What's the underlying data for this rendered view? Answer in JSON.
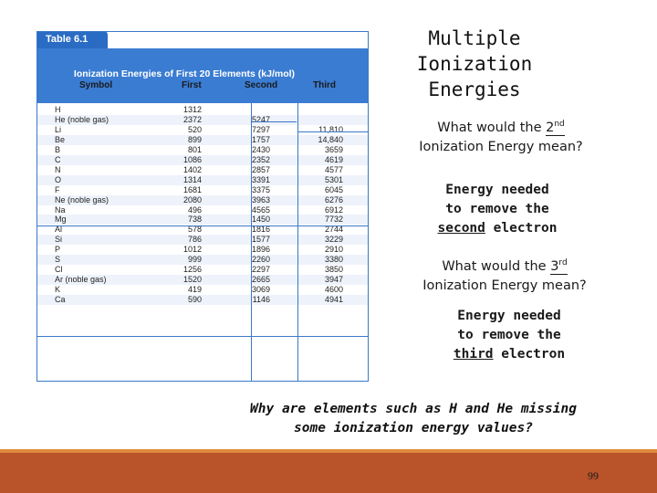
{
  "table": {
    "tab_label": "Table 6.1",
    "caption": "Ionization Energies of First 20 Elements (kJ/mol)",
    "headers": [
      "Symbol",
      "First",
      "Second",
      "Third"
    ],
    "rows": [
      {
        "symbol": "H",
        "first": "1312",
        "second": "",
        "third": ""
      },
      {
        "symbol": "He (noble gas)",
        "first": "2372",
        "second": "5247",
        "third": ""
      },
      {
        "symbol": "Li",
        "first": "520",
        "second": "7297",
        "third": "11,810"
      },
      {
        "symbol": "Be",
        "first": "899",
        "second": "1757",
        "third": "14,840"
      },
      {
        "symbol": "B",
        "first": "801",
        "second": "2430",
        "third": "3659"
      },
      {
        "symbol": "C",
        "first": "1086",
        "second": "2352",
        "third": "4619"
      },
      {
        "symbol": "N",
        "first": "1402",
        "second": "2857",
        "third": "4577"
      },
      {
        "symbol": "O",
        "first": "1314",
        "second": "3391",
        "third": "5301"
      },
      {
        "symbol": "F",
        "first": "1681",
        "second": "3375",
        "third": "6045"
      },
      {
        "symbol": "Ne (noble gas)",
        "first": "2080",
        "second": "3963",
        "third": "6276"
      },
      {
        "symbol": "Na",
        "first": "496",
        "second": "4565",
        "third": "6912"
      },
      {
        "symbol": "Mg",
        "first": "738",
        "second": "1450",
        "third": "7732"
      },
      {
        "symbol": "Al",
        "first": "578",
        "second": "1816",
        "third": "2744"
      },
      {
        "symbol": "Si",
        "first": "786",
        "second": "1577",
        "third": "3229"
      },
      {
        "symbol": "P",
        "first": "1012",
        "second": "1896",
        "third": "2910"
      },
      {
        "symbol": "S",
        "first": "999",
        "second": "2260",
        "third": "3380"
      },
      {
        "symbol": "Cl",
        "first": "1256",
        "second": "2297",
        "third": "3850"
      },
      {
        "symbol": "Ar (noble gas)",
        "first": "1520",
        "second": "2665",
        "third": "3947"
      },
      {
        "symbol": "K",
        "first": "419",
        "second": "3069",
        "third": "4600"
      },
      {
        "symbol": "Ca",
        "first": "590",
        "second": "1146",
        "third": "4941"
      }
    ]
  },
  "slide": {
    "title_line1": "Multiple Ionization",
    "title_line2": "Energies",
    "q1_pre": "What would the ",
    "q1_num": "2",
    "q1_sup": "nd",
    "q1_line2": "Ionization Energy mean?",
    "a1_line1": "Energy needed",
    "a1_line2": "to remove the",
    "a1_underlined": "second",
    "a1_tail": " electron",
    "q2_pre": "What would the ",
    "q2_num": "3",
    "q2_sup": "rd",
    "q2_line2": "Ionization Energy mean?",
    "a2_line1": "Energy needed",
    "a2_line2": "to remove the",
    "a2_underlined": "third",
    "a2_tail": " electron",
    "bottom_line1": "Why are elements such as H and He missing",
    "bottom_line2": "some ionization energy values?",
    "page_number": "99"
  },
  "colors": {
    "table_blue": "#3a7cd2",
    "footer_brown": "#b8532a",
    "footer_orange": "#e08a3c"
  }
}
